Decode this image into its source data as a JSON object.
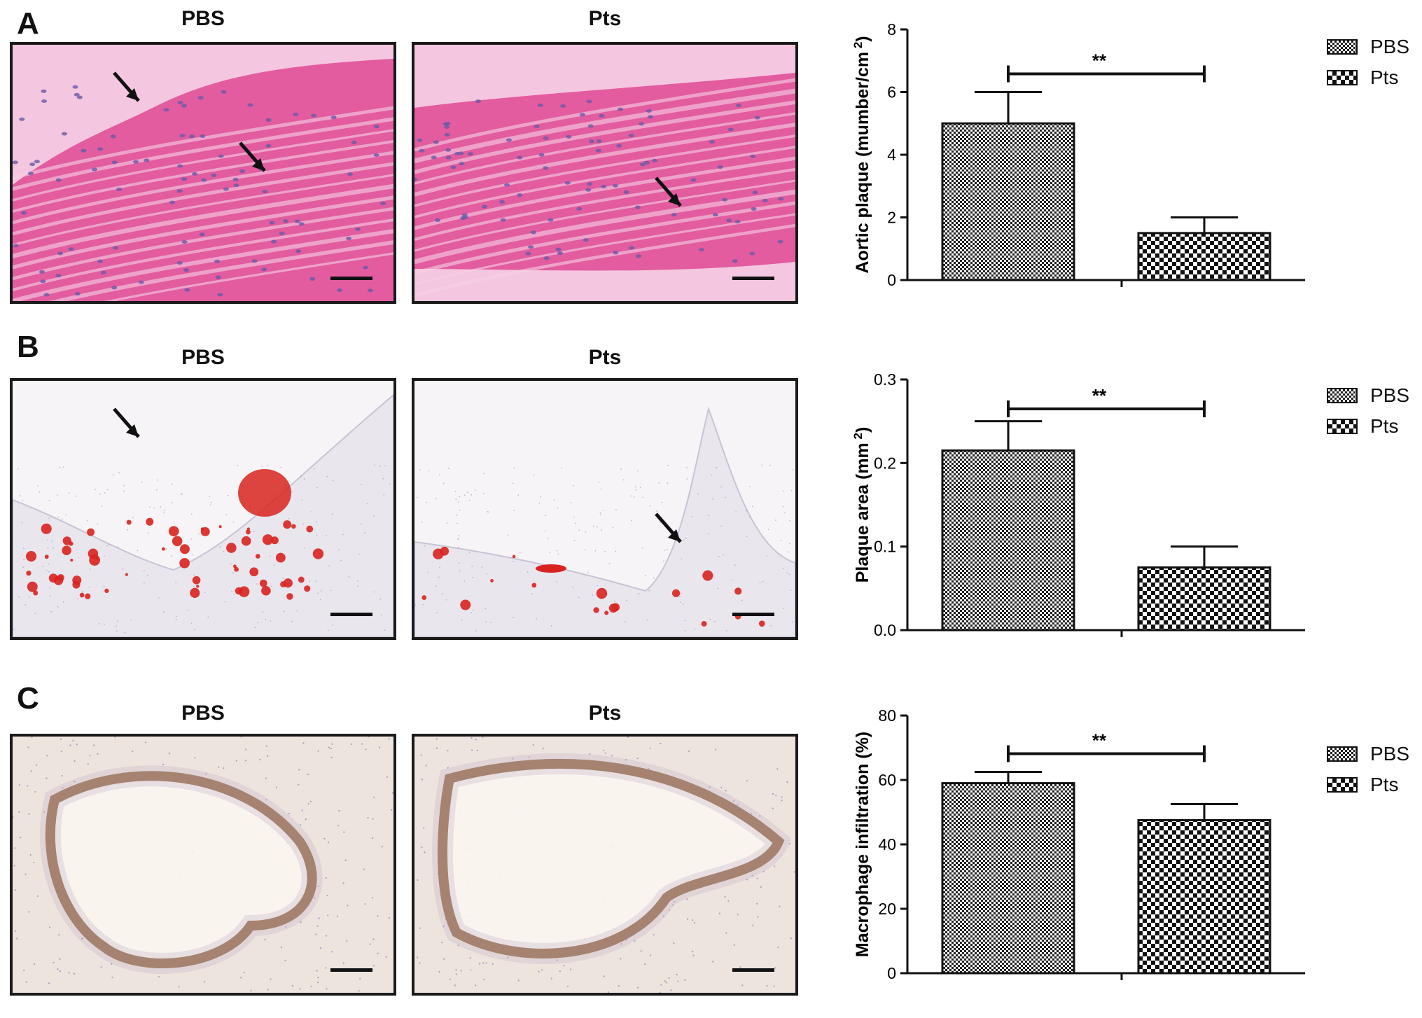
{
  "panels": [
    {
      "letter": "A",
      "images": [
        {
          "title": "PBS",
          "stain": "he",
          "arrows": 2
        },
        {
          "title": "Pts",
          "stain": "he",
          "arrows": 1
        }
      ]
    },
    {
      "letter": "B",
      "images": [
        {
          "title": "PBS",
          "stain": "oilred",
          "arrows": 1
        },
        {
          "title": "Pts",
          "stain": "oilred",
          "arrows": 1
        }
      ]
    },
    {
      "letter": "C",
      "images": [
        {
          "title": "PBS",
          "stain": "ihc",
          "arrows": 0
        },
        {
          "title": "Pts",
          "stain": "ihc",
          "arrows": 0
        }
      ]
    }
  ],
  "legend": {
    "items": [
      "PBS",
      "Pts"
    ]
  },
  "chart_data": [
    {
      "type": "bar",
      "categories": [
        "PBS",
        "Pts"
      ],
      "values": [
        5.0,
        1.5
      ],
      "errors": [
        1.0,
        0.5
      ],
      "ylabel": "Aortic plaque (mumber/cm 2)",
      "ylabel_main": "Aortic plaque (mumber/cm",
      "ylabel_sup": "2",
      "ylabel_close": ")",
      "ylim": [
        0,
        8
      ],
      "yticks": [
        "0",
        "2",
        "4",
        "6",
        "8"
      ],
      "significance": "**",
      "legend_position": "top-right"
    },
    {
      "type": "bar",
      "categories": [
        "PBS",
        "Pts"
      ],
      "values": [
        0.215,
        0.075
      ],
      "errors": [
        0.035,
        0.025
      ],
      "ylabel": "Plaque area (mm 2)",
      "ylabel_main": "Plaque area (mm",
      "ylabel_sup": "2",
      "ylabel_close": ")",
      "ylim": [
        0,
        0.3
      ],
      "yticks": [
        "0.0",
        "0.1",
        "0.2",
        "0.3"
      ],
      "significance": "**",
      "legend_position": "top-right"
    },
    {
      "type": "bar",
      "categories": [
        "PBS",
        "Pts"
      ],
      "values": [
        59,
        47.5
      ],
      "errors": [
        3.5,
        5
      ],
      "ylabel": "Macrophage infiltration (%)",
      "ylabel_main": "Macrophage infiltration (%)",
      "ylabel_sup": "",
      "ylabel_close": "",
      "ylim": [
        0,
        80
      ],
      "yticks": [
        "0",
        "20",
        "40",
        "60",
        "80"
      ],
      "significance": "**",
      "legend_position": "top-right"
    }
  ],
  "colors": {
    "he_bg": "#f4c6df",
    "he_tissue": "#e0569b",
    "oil_red": "#d8241f",
    "ihc_brown": "#8a5a2e",
    "hematoxylin": "#6a5aa8"
  }
}
